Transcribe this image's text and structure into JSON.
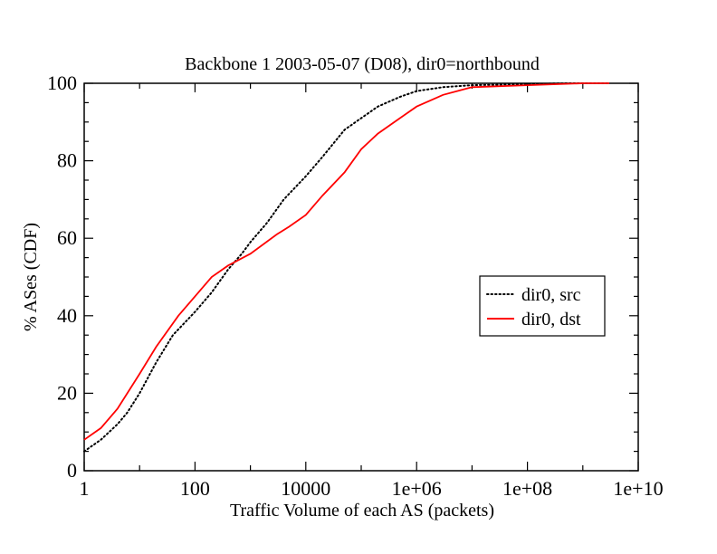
{
  "chart_data": {
    "type": "line",
    "title": "Backbone 1 2003-05-07 (D08), dir0=northbound",
    "xlabel": "Traffic Volume of each AS (packets)",
    "ylabel": "% ASes (CDF)",
    "xscale": "log",
    "xlim": [
      1,
      10000000000
    ],
    "ylim": [
      0,
      100
    ],
    "xticks": [
      1,
      100,
      10000,
      1000000,
      100000000,
      10000000000
    ],
    "xtick_labels": [
      "1",
      "100",
      "10000",
      "1e+06",
      "1e+08",
      "1e+10"
    ],
    "yticks": [
      0,
      20,
      40,
      60,
      80,
      100
    ],
    "ytick_labels": [
      "0",
      "20",
      "40",
      "60",
      "80",
      "100"
    ],
    "grid": false,
    "legend_position": "right",
    "series": [
      {
        "name": "dir0, src",
        "color": "#000000",
        "style": "dotted",
        "x": [
          1,
          2,
          4,
          6,
          10,
          20,
          40,
          100,
          200,
          400,
          700,
          1000,
          2000,
          4000,
          10000,
          20000,
          50000,
          100000,
          200000,
          500000,
          1000000,
          3000000,
          10000000,
          100000000,
          500000000,
          3000000000
        ],
        "y": [
          5,
          8,
          12,
          15,
          20,
          28,
          35,
          41,
          46,
          52,
          56,
          59,
          64,
          70,
          76,
          81,
          88,
          91,
          94,
          96.5,
          98,
          99,
          99.5,
          99.8,
          100,
          100
        ]
      },
      {
        "name": "dir0, dst",
        "color": "#ff0000",
        "style": "solid",
        "x": [
          1,
          2,
          4,
          10,
          20,
          50,
          100,
          200,
          400,
          1000,
          3000,
          5000,
          10000,
          20000,
          50000,
          100000,
          200000,
          500000,
          1000000,
          3000000,
          10000000,
          100000000,
          1000000000,
          3000000000
        ],
        "y": [
          8,
          11,
          16,
          25,
          32,
          40,
          45,
          50,
          53,
          56,
          61,
          63,
          66,
          71,
          77,
          83,
          87,
          91,
          94,
          97,
          99,
          99.5,
          100,
          100
        ]
      }
    ]
  }
}
